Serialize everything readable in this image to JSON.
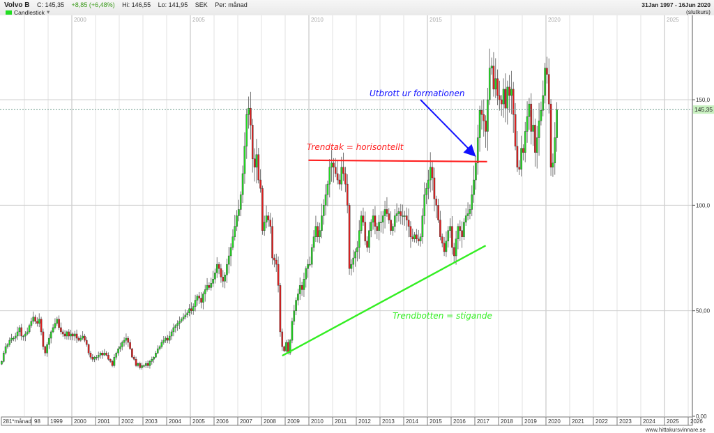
{
  "header": {
    "symbol": "Volvo B",
    "close": "C: 145,35",
    "change": "+8,85 (+6,48%)",
    "high": "Hi: 146,55",
    "low": "Lo: 141,95",
    "currency": "SEK",
    "period": "Per: månad",
    "chart_type": "Candlestick",
    "chart_type_dropdown": "▾",
    "date_range": "31Jan 1997 - 16Jun 2020",
    "price_basis": "(slutkurs)"
  },
  "footer": {
    "site": "www.hittakursvinnare.se"
  },
  "colors": {
    "up": "#22dd22",
    "down": "#e02020",
    "trend_top": "#ff2020",
    "trend_bottom": "#33ee22",
    "arrow": "#1010ff",
    "last_price_label_bg": "#c8f0c0"
  },
  "chart_data": {
    "type": "candlestick",
    "frequency": "monthly",
    "x_start": "1997-01",
    "x_end": "2020-06",
    "ylim": [
      0,
      190
    ],
    "grid": true,
    "y_ticks": [
      {
        "value": 150,
        "label": "150,0"
      },
      {
        "value": 100,
        "label": "100,0"
      },
      {
        "value": 50,
        "label": "50,00"
      },
      {
        "value": 0,
        "label": "0,00"
      }
    ],
    "last_price": {
      "value": 145.35,
      "label": "145,35"
    },
    "top_year_labels": [
      "2000",
      "2005",
      "2010",
      "2015",
      "2020",
      "2025"
    ],
    "bottom_axis_prefix": "281*månad",
    "bottom_year_labels": [
      "98",
      "1999",
      "2000",
      "2001",
      "2002",
      "2003",
      "2004",
      "2005",
      "2006",
      "2007",
      "2008",
      "2009",
      "2010",
      "2011",
      "2012",
      "2013",
      "2014",
      "2015",
      "2016",
      "2017",
      "2018",
      "2019",
      "2020",
      "2021",
      "2022",
      "2023",
      "2024",
      "2025",
      "2026"
    ],
    "close_by_year": {
      "1997": [
        26,
        30,
        33,
        34,
        36,
        37,
        37,
        38,
        40,
        42,
        38,
        38
      ],
      "1998": [
        39,
        40,
        43,
        45,
        47,
        45,
        44,
        46,
        40,
        33,
        30,
        34
      ],
      "1999": [
        37,
        40,
        42,
        44,
        46,
        42,
        40,
        39,
        38,
        40,
        38,
        39
      ],
      "2000": [
        38,
        39,
        37,
        36,
        37,
        38,
        36,
        34,
        30,
        28,
        27,
        28
      ],
      "2001": [
        28,
        29,
        30,
        29,
        30,
        29,
        27,
        26,
        24,
        28,
        30,
        32
      ],
      "2002": [
        33,
        35,
        36,
        37,
        35,
        32,
        28,
        27,
        24,
        25,
        23,
        24
      ],
      "2003": [
        24,
        25,
        24,
        26,
        27,
        28,
        30,
        32,
        33,
        35,
        36,
        37
      ],
      "2004": [
        36,
        38,
        40,
        42,
        43,
        44,
        45,
        46,
        47,
        48,
        49,
        51
      ],
      "2005": [
        50,
        52,
        55,
        57,
        56,
        54,
        58,
        60,
        62,
        61,
        63,
        65
      ],
      "2006": [
        68,
        72,
        70,
        66,
        64,
        67,
        72,
        76,
        80,
        85,
        90,
        95
      ],
      "2007": [
        98,
        105,
        115,
        128,
        143,
        146,
        138,
        122,
        118,
        124,
        112,
        108
      ],
      "2008": [
        88,
        92,
        95,
        93,
        90,
        75,
        74,
        72,
        62,
        40,
        33,
        31
      ],
      "2009": [
        35,
        30,
        36,
        45,
        50,
        55,
        58,
        62,
        60,
        65,
        70,
        72
      ],
      "2010": [
        72,
        80,
        85,
        90,
        85,
        88,
        95,
        100,
        105,
        110,
        118,
        120
      ],
      "2011": [
        118,
        115,
        112,
        110,
        118,
        115,
        110,
        100,
        70,
        72,
        75,
        78
      ],
      "2012": [
        80,
        88,
        95,
        92,
        83,
        80,
        88,
        92,
        95,
        90,
        88,
        92
      ],
      "2013": [
        92,
        95,
        98,
        96,
        93,
        88,
        90,
        95,
        96,
        97,
        95,
        95
      ],
      "2014": [
        95,
        93,
        90,
        85,
        84,
        86,
        84,
        83,
        85,
        95,
        105,
        108
      ],
      "2015": [
        112,
        118,
        113,
        103,
        100,
        93,
        85,
        82,
        78,
        83,
        88,
        90
      ],
      "2016": [
        80,
        76,
        84,
        90,
        88,
        85,
        92,
        95,
        96,
        98,
        105,
        112
      ],
      "2017": [
        120,
        132,
        145,
        143,
        140,
        135,
        150,
        165,
        166,
        155,
        160,
        152
      ],
      "2018": [
        150,
        148,
        155,
        146,
        156,
        152,
        155,
        143,
        128,
        118,
        117,
        127
      ],
      "2019": [
        125,
        135,
        142,
        148,
        135,
        138,
        125,
        132,
        140,
        145,
        152,
        165
      ],
      "2020": [
        162,
        148,
        118,
        120,
        132,
        145.35
      ]
    },
    "annotations": [
      {
        "id": "trend_top",
        "text": "Trendtak = horisontellt",
        "kind": "horizontal-line",
        "value": 121,
        "from": "2010-01",
        "to": "2017-06"
      },
      {
        "id": "trend_bottom",
        "text": "Trendbotten = stigande",
        "kind": "trend-line",
        "from": [
          "2008-11",
          28.7
        ],
        "to": [
          "2017-06",
          80.9
        ]
      },
      {
        "id": "breakout",
        "text": "Utbrott ur formationen",
        "kind": "arrow",
        "target": [
          "2017-01",
          123
        ]
      }
    ]
  }
}
